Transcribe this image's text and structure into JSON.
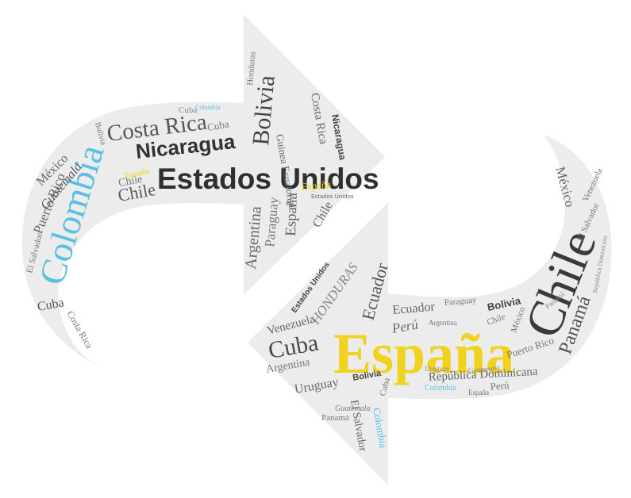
{
  "colors": {
    "background": "#ffffff",
    "arrow_fill": "#ececec",
    "dark": "#3a3a3a",
    "mid": "#6e6e6e",
    "light": "#9a9a9a",
    "blue": "#5bbfe2",
    "yellow": "#f0d21f"
  },
  "words": {
    "w_colombia_big": "Colombia",
    "w_estados_unidos": "Estados Unidos",
    "w_nicaragua": "Nicaragua",
    "w_costa_rica": "Costa Rica",
    "w_bolivia_top": "Bolivia",
    "w_mexico_left": "México",
    "w_guatemala_left": "Guatemala",
    "w_puerto_rico_left": "Puerto Rico",
    "w_chile_top": "Chile",
    "w_chile_top2": "Chile",
    "w_espana_small_top": "España",
    "w_espana_yellow_top": "España",
    "w_cuba_left": "Cuba",
    "w_el_salvador_left": "El Salvador",
    "w_argentina_top": "Argentina",
    "w_paraguay_top": "Paraguay",
    "w_espana_vert_top": "España",
    "w_cuba_top": "Cuba",
    "w_honduras_top": "Honduras",
    "w_guinea": "Guinea Ecuatorial",
    "w_costa_rica_vert": "Costa Rica",
    "w_nicaragua_vert": "Nicaragua",
    "w_chile_vert": "Chile",
    "w_espana_big": "España",
    "w_chile_big": "Chile",
    "w_panama_right": "Panamá",
    "w_mexico_right": "México",
    "w_venezuela_right": "Venezuela",
    "w_el_salvador_right": "El Salvador",
    "w_republica": "República Dominicana",
    "w_cuba_bottom": "Cuba",
    "w_venezuela_bottom": "Venezuela",
    "w_argentina_bottom": "Argentina",
    "w_uruguay_bottom": "Uruguay",
    "w_ecuador_bottom": "Ecuador",
    "w_honduras_bottom": "HONDURAS",
    "w_estados_unidos_small": "Estados Unidos",
    "w_peru_bottom": "Perú",
    "w_ecuador_mid": "Ecuador",
    "w_bolivia_right": "Bolivia",
    "w_puerto_rico_right": "Puerto Rico",
    "w_elsalvador_bottom": "El Salvador",
    "w_colombia_bottom": "Colombia",
    "w_panama_bottom": "Panamá",
    "w_guatemala_bottom": "Guatemala",
    "w_peru_right": "Perú",
    "w_bolivia_bottom": "Bolivia",
    "w_colombia_small": "Colombia",
    "w_espana_small_bottom": "España",
    "w_paraguay_bottom": "Paraguay",
    "w_argentina_small": "Argentina",
    "w_chile_small_bottom": "Chile",
    "w_mexico_bottom": "México",
    "w_uruguay_small": "Uruguay",
    "w_cuba_small": "Cuba",
    "w_panama_small": "Panamá",
    "w_republica_small": "República Dominicana",
    "w_guatemala_small": "Guatemala",
    "w_colombia_tiny": "Colombia",
    "w_bolivia_left": "Bolivia",
    "w_costa_rica_left": "Costa Rica",
    "w_cuba_top2": "Cuba",
    "w_estados_tiny": "Estados Unidos"
  }
}
